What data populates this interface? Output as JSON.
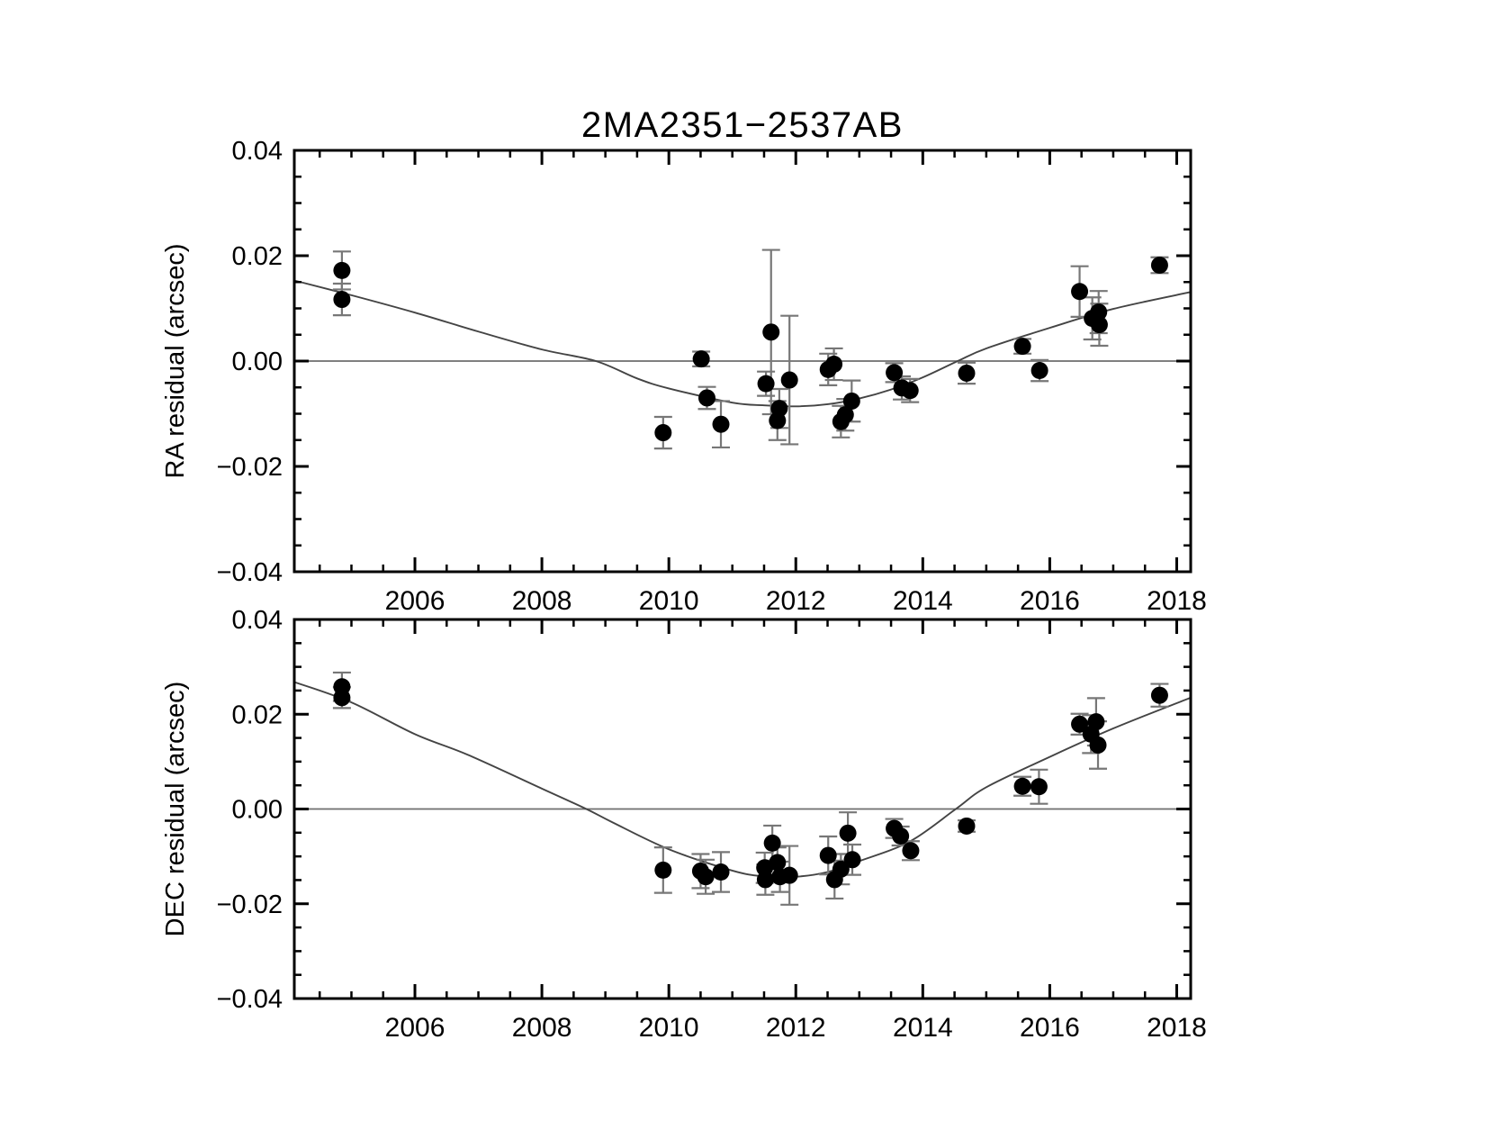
{
  "figure_title": "2MA2351−2537AB",
  "chart_data": [
    {
      "name": "ra_residual_panel",
      "type": "scatter",
      "title": "2MA2351−2537AB",
      "xlabel": "",
      "ylabel": "RA residual (arcsec)",
      "xlim": [
        2004.1,
        2018.22
      ],
      "ylim": [
        -0.04,
        0.04
      ],
      "grid": false,
      "legend": null,
      "zero_line": true,
      "marker_color": "#000000",
      "errorbar_color": "#777777",
      "curve_color": "#444444",
      "x_ticks": {
        "values": [
          2006,
          2008,
          2010,
          2012,
          2014,
          2016,
          2018
        ],
        "labels": [
          "2006",
          "2008",
          "2010",
          "2012",
          "2014",
          "2016",
          "2018"
        ],
        "minor_step": 0.5
      },
      "y_ticks": {
        "values": [
          -0.04,
          -0.02,
          0,
          0.02,
          0.04
        ],
        "labels": [
          "−0.04",
          "−0.02",
          "0.00",
          "0.02",
          "0.04"
        ],
        "minor_step": 0.005
      },
      "points": [
        {
          "x": 2004.85,
          "y": 0.0172,
          "e": 0.0036
        },
        {
          "x": 2004.85,
          "y": 0.0117,
          "e": 0.003
        },
        {
          "x": 2009.91,
          "y": -0.0136,
          "e": 0.003
        },
        {
          "x": 2010.51,
          "y": 0.0004,
          "e": 0.0014
        },
        {
          "x": 2010.6,
          "y": -0.007,
          "e": 0.0021
        },
        {
          "x": 2010.82,
          "y": -0.012,
          "e": 0.0044
        },
        {
          "x": 2011.53,
          "y": -0.0043,
          "e": 0.0023
        },
        {
          "x": 2011.61,
          "y": 0.0055,
          "e": 0.0156
        },
        {
          "x": 2011.71,
          "y": -0.0113,
          "e": 0.0037
        },
        {
          "x": 2011.74,
          "y": -0.009,
          "e": 0.0037
        },
        {
          "x": 2011.9,
          "y": -0.0036,
          "e": 0.0122
        },
        {
          "x": 2012.51,
          "y": -0.0016,
          "e": 0.003
        },
        {
          "x": 2012.6,
          "y": -0.0006,
          "e": 0.003
        },
        {
          "x": 2012.71,
          "y": -0.0115,
          "e": 0.003
        },
        {
          "x": 2012.78,
          "y": -0.0102,
          "e": 0.003
        },
        {
          "x": 2012.88,
          "y": -0.0076,
          "e": 0.0039
        },
        {
          "x": 2013.55,
          "y": -0.0022,
          "e": 0.0018
        },
        {
          "x": 2013.67,
          "y": -0.0051,
          "e": 0.0022
        },
        {
          "x": 2013.8,
          "y": -0.0056,
          "e": 0.0022
        },
        {
          "x": 2014.69,
          "y": -0.0023,
          "e": 0.002
        },
        {
          "x": 2015.57,
          "y": 0.0028,
          "e": 0.0014
        },
        {
          "x": 2015.84,
          "y": -0.0018,
          "e": 0.002
        },
        {
          "x": 2016.47,
          "y": 0.0132,
          "e": 0.0048
        },
        {
          "x": 2016.67,
          "y": 0.0081,
          "e": 0.004
        },
        {
          "x": 2016.77,
          "y": 0.0093,
          "e": 0.004
        },
        {
          "x": 2016.78,
          "y": 0.0069,
          "e": 0.004
        },
        {
          "x": 2017.73,
          "y": 0.0182,
          "e": 0.0015
        }
      ],
      "fit_curve": [
        [
          2004.1,
          0.0153
        ],
        [
          2005.0,
          0.0125
        ],
        [
          2006.0,
          0.0092
        ],
        [
          2007.0,
          0.0056
        ],
        [
          2008.0,
          0.0022
        ],
        [
          2008.85,
          0.0
        ],
        [
          2009.5,
          -0.0033
        ],
        [
          2010.0,
          -0.0052
        ],
        [
          2011.0,
          -0.0079
        ],
        [
          2011.5,
          -0.0084
        ],
        [
          2012.0,
          -0.0086
        ],
        [
          2012.5,
          -0.0082
        ],
        [
          2013.0,
          -0.0071
        ],
        [
          2013.5,
          -0.0054
        ],
        [
          2014.0,
          -0.0031
        ],
        [
          2014.55,
          0.0
        ],
        [
          2015.0,
          0.0024
        ],
        [
          2016.0,
          0.0063
        ],
        [
          2017.0,
          0.0099
        ],
        [
          2018.22,
          0.0131
        ]
      ]
    },
    {
      "name": "dec_residual_panel",
      "type": "scatter",
      "title": "",
      "xlabel": "",
      "ylabel": "DEC residual (arcsec)",
      "xlim": [
        2004.1,
        2018.22
      ],
      "ylim": [
        -0.04,
        0.04
      ],
      "grid": false,
      "legend": null,
      "zero_line": true,
      "marker_color": "#000000",
      "errorbar_color": "#777777",
      "curve_color": "#444444",
      "x_ticks": {
        "values": [
          2006,
          2008,
          2010,
          2012,
          2014,
          2016,
          2018
        ],
        "labels": [
          "2006",
          "2008",
          "2010",
          "2012",
          "2014",
          "2016",
          "2018"
        ],
        "minor_step": 0.5
      },
      "y_ticks": {
        "values": [
          -0.04,
          -0.02,
          0,
          0.02,
          0.04
        ],
        "labels": [
          "−0.04",
          "−0.02",
          "0.00",
          "0.02",
          "0.04"
        ],
        "minor_step": 0.005
      },
      "points": [
        {
          "x": 2004.85,
          "y": 0.0258,
          "e": 0.003
        },
        {
          "x": 2004.85,
          "y": 0.0235,
          "e": 0.0022
        },
        {
          "x": 2009.91,
          "y": -0.0129,
          "e": 0.0048
        },
        {
          "x": 2010.5,
          "y": -0.0131,
          "e": 0.0036
        },
        {
          "x": 2010.58,
          "y": -0.0143,
          "e": 0.0036
        },
        {
          "x": 2010.82,
          "y": -0.0133,
          "e": 0.0042
        },
        {
          "x": 2011.51,
          "y": -0.0124,
          "e": 0.0032
        },
        {
          "x": 2011.52,
          "y": -0.0149,
          "e": 0.0032
        },
        {
          "x": 2011.63,
          "y": -0.0072,
          "e": 0.0037
        },
        {
          "x": 2011.71,
          "y": -0.0113,
          "e": 0.0032
        },
        {
          "x": 2011.75,
          "y": -0.0143,
          "e": 0.0032
        },
        {
          "x": 2011.9,
          "y": -0.014,
          "e": 0.0062
        },
        {
          "x": 2012.51,
          "y": -0.0098,
          "e": 0.004
        },
        {
          "x": 2012.61,
          "y": -0.0149,
          "e": 0.004
        },
        {
          "x": 2012.71,
          "y": -0.0127,
          "e": 0.0032
        },
        {
          "x": 2012.82,
          "y": -0.0051,
          "e": 0.0044
        },
        {
          "x": 2012.89,
          "y": -0.0107,
          "e": 0.0032
        },
        {
          "x": 2013.55,
          "y": -0.0041,
          "e": 0.002
        },
        {
          "x": 2013.65,
          "y": -0.0057,
          "e": 0.002
        },
        {
          "x": 2013.81,
          "y": -0.0088,
          "e": 0.002
        },
        {
          "x": 2014.69,
          "y": -0.0036,
          "e": 0.0012
        },
        {
          "x": 2015.57,
          "y": 0.0048,
          "e": 0.002
        },
        {
          "x": 2015.83,
          "y": 0.0047,
          "e": 0.0036
        },
        {
          "x": 2016.47,
          "y": 0.0179,
          "e": 0.0022
        },
        {
          "x": 2016.65,
          "y": 0.0158,
          "e": 0.004
        },
        {
          "x": 2016.73,
          "y": 0.0184,
          "e": 0.005
        },
        {
          "x": 2016.76,
          "y": 0.0135,
          "e": 0.005
        },
        {
          "x": 2017.73,
          "y": 0.024,
          "e": 0.0024
        }
      ],
      "fit_curve": [
        [
          2004.1,
          0.0268
        ],
        [
          2005.0,
          0.0225
        ],
        [
          2006.0,
          0.0158
        ],
        [
          2006.84,
          0.0114
        ],
        [
          2008.0,
          0.0043
        ],
        [
          2008.7,
          0.0
        ],
        [
          2009.11,
          -0.0028
        ],
        [
          2010.0,
          -0.0085
        ],
        [
          2011.0,
          -0.013
        ],
        [
          2011.5,
          -0.0142
        ],
        [
          2012.0,
          -0.0143
        ],
        [
          2012.5,
          -0.0133
        ],
        [
          2013.0,
          -0.011
        ],
        [
          2013.79,
          -0.0069
        ],
        [
          2014.52,
          0.0
        ],
        [
          2015.0,
          0.0046
        ],
        [
          2016.0,
          0.011
        ],
        [
          2017.0,
          0.017
        ],
        [
          2018.22,
          0.0235
        ]
      ]
    }
  ]
}
